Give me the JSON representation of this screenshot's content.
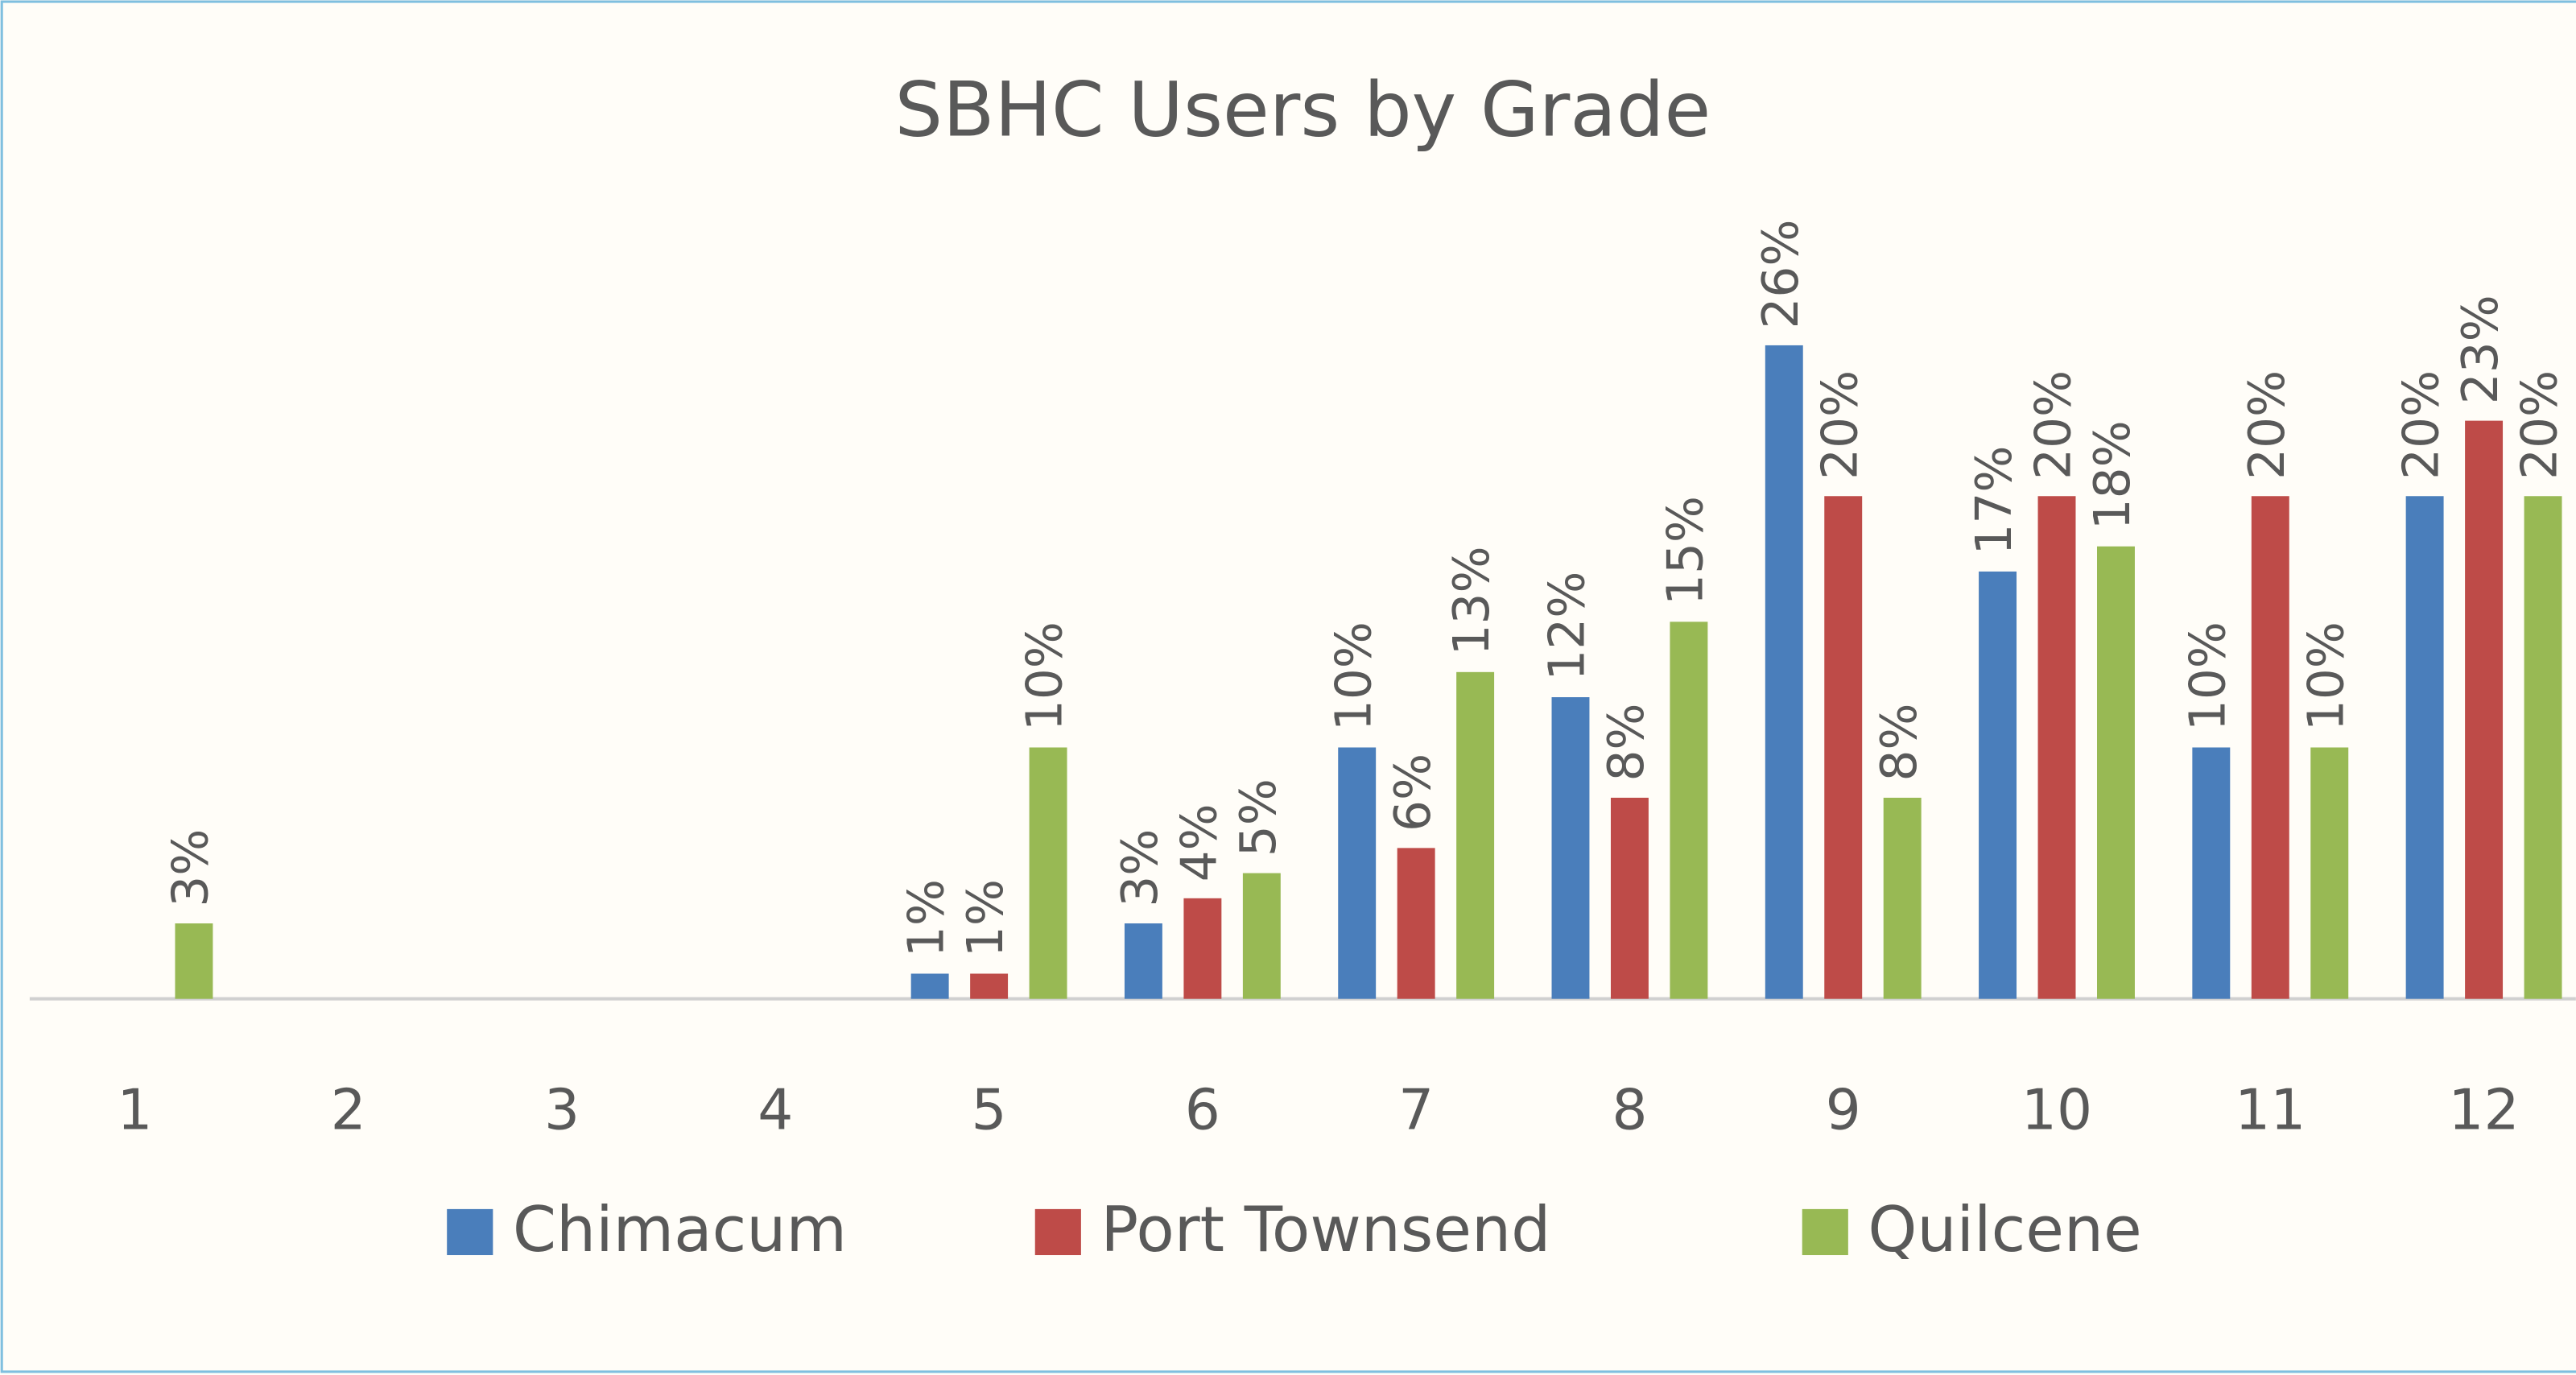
{
  "chart_data": {
    "type": "bar",
    "title": "SBHC Users by Grade",
    "categories": [
      "1",
      "2",
      "3",
      "4",
      "5",
      "6",
      "7",
      "8",
      "9",
      "10",
      "11",
      "12"
    ],
    "series": [
      {
        "name": "Chimacum",
        "color": "#4a7ebb",
        "values": [
          null,
          null,
          null,
          null,
          1,
          3,
          10,
          12,
          26,
          17,
          10,
          20
        ],
        "value_labels": [
          null,
          null,
          null,
          null,
          "1%",
          "3%",
          "10%",
          "12%",
          "26%",
          "17%",
          "10%",
          "20%"
        ]
      },
      {
        "name": "Port Townsend",
        "color": "#be4b48",
        "values": [
          null,
          null,
          null,
          null,
          1,
          4,
          6,
          8,
          20,
          20,
          20,
          23
        ],
        "value_labels": [
          null,
          null,
          null,
          null,
          "1%",
          "4%",
          "6%",
          "8%",
          "20%",
          "20%",
          "20%",
          "23%"
        ]
      },
      {
        "name": "Quilcene",
        "color": "#98b954",
        "values": [
          3,
          null,
          null,
          null,
          10,
          5,
          13,
          15,
          8,
          18,
          10,
          20
        ],
        "value_labels": [
          "3%",
          null,
          null,
          null,
          "10%",
          "5%",
          "13%",
          "15%",
          "8%",
          "18%",
          "10%",
          "20%"
        ]
      }
    ],
    "ylim": [
      0,
      30
    ],
    "legend": "bottom"
  }
}
